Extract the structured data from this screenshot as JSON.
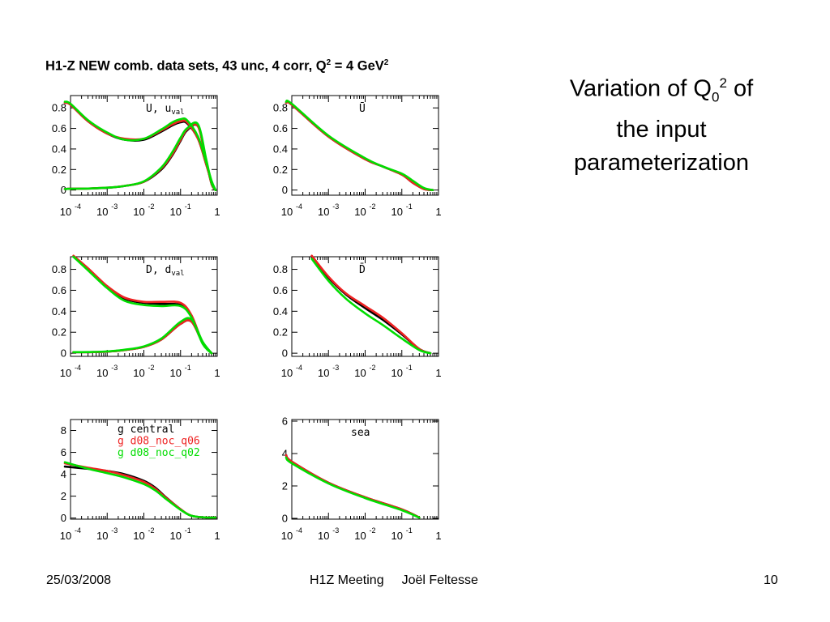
{
  "title": {
    "main": "H1-Z NEW comb. data sets, 43 unc, 4 corr, Q",
    "sup1": "2",
    "mid": " = 4 GeV",
    "sup2": "2"
  },
  "side": {
    "line1a": "Variation of Q",
    "line1_sub": "0",
    "line1_sup": "2",
    "line1b": " of",
    "line2": "the input",
    "line3": "parameterization"
  },
  "footer": {
    "date": "25/03/2008",
    "meeting": "H1Z Meeting",
    "author": "Joël Feltesse",
    "page": "10"
  },
  "colors": {
    "central": "#000000",
    "d08_noc_q06": "#ee2222",
    "d08_noc_q02": "#00dd00"
  },
  "chart_data": [
    {
      "type": "line",
      "label": "U, u",
      "label_sub": "val",
      "xscale": "log",
      "xlim": [
        0.0001,
        1
      ],
      "ylim": [
        -0.05,
        0.92
      ],
      "yticks": [
        "0",
        "0.2",
        "0.4",
        "0.6",
        "0.8"
      ],
      "yticks_val": [
        0,
        0.2,
        0.4,
        0.6,
        0.8
      ],
      "xticks": [
        {
          "base": "10",
          "exp": "-4"
        },
        {
          "base": "10",
          "exp": "-3"
        },
        {
          "base": "10",
          "exp": "-2"
        },
        {
          "base": "10",
          "exp": "-1"
        },
        {
          "base": "1",
          "exp": ""
        }
      ],
      "x": [
        7e-05,
        0.0001,
        0.0003,
        0.001,
        0.003,
        0.01,
        0.03,
        0.06,
        0.1,
        0.15,
        0.3,
        0.5,
        0.7,
        0.9
      ],
      "curves": [
        {
          "series": "central",
          "values": [
            0.85,
            0.83,
            0.67,
            0.55,
            0.49,
            0.49,
            0.57,
            0.63,
            0.66,
            0.65,
            0.5,
            0.25,
            0.08,
            0.0
          ]
        },
        {
          "series": "d08_noc_q06",
          "values": [
            0.85,
            0.83,
            0.67,
            0.55,
            0.5,
            0.5,
            0.58,
            0.64,
            0.67,
            0.66,
            0.5,
            0.25,
            0.08,
            0.0
          ]
        },
        {
          "series": "d08_noc_q02",
          "values": [
            0.86,
            0.84,
            0.68,
            0.56,
            0.49,
            0.5,
            0.59,
            0.66,
            0.69,
            0.68,
            0.52,
            0.27,
            0.09,
            0.0
          ]
        },
        {
          "series": "central",
          "values": [
            0.01,
            0.012,
            0.015,
            0.022,
            0.04,
            0.08,
            0.2,
            0.34,
            0.48,
            0.58,
            0.62,
            0.28,
            0.06,
            0.0
          ]
        },
        {
          "series": "d08_noc_q06",
          "values": [
            0.01,
            0.012,
            0.015,
            0.023,
            0.041,
            0.082,
            0.21,
            0.35,
            0.49,
            0.59,
            0.62,
            0.28,
            0.06,
            0.0
          ]
        },
        {
          "series": "d08_noc_q02",
          "values": [
            0.01,
            0.012,
            0.015,
            0.023,
            0.04,
            0.085,
            0.22,
            0.37,
            0.51,
            0.6,
            0.64,
            0.3,
            0.07,
            0.0
          ]
        }
      ]
    },
    {
      "type": "line",
      "label": "Ū",
      "label_sub": "",
      "xscale": "log",
      "xlim": [
        0.0001,
        1
      ],
      "ylim": [
        -0.05,
        0.92
      ],
      "yticks": [
        "0",
        "0.2",
        "0.4",
        "0.6",
        "0.8"
      ],
      "yticks_val": [
        0,
        0.2,
        0.4,
        0.6,
        0.8
      ],
      "xticks": [
        {
          "base": "10",
          "exp": "-4"
        },
        {
          "base": "10",
          "exp": "-3"
        },
        {
          "base": "10",
          "exp": "-2"
        },
        {
          "base": "10",
          "exp": "-1"
        },
        {
          "base": "1",
          "exp": ""
        }
      ],
      "x": [
        7e-05,
        0.0001,
        0.001,
        0.01,
        0.03,
        0.1,
        0.2,
        0.4,
        0.7
      ],
      "curves": [
        {
          "series": "central",
          "values": [
            0.85,
            0.83,
            0.52,
            0.3,
            0.23,
            0.15,
            0.07,
            0.01,
            0.0
          ]
        },
        {
          "series": "d08_noc_q06",
          "values": [
            0.85,
            0.83,
            0.52,
            0.3,
            0.23,
            0.15,
            0.07,
            0.01,
            0.0
          ]
        },
        {
          "series": "d08_noc_q02",
          "values": [
            0.86,
            0.84,
            0.53,
            0.31,
            0.23,
            0.16,
            0.09,
            0.02,
            0.0
          ]
        }
      ]
    },
    {
      "type": "line",
      "label": "D, d",
      "label_sub": "val",
      "xscale": "log",
      "xlim": [
        0.0001,
        1
      ],
      "ylim": [
        -0.03,
        0.92
      ],
      "yticks": [
        "0",
        "0.2",
        "0.4",
        "0.6",
        "0.8"
      ],
      "yticks_val": [
        0,
        0.2,
        0.4,
        0.6,
        0.8
      ],
      "xticks": [
        {
          "base": "10",
          "exp": "-4"
        },
        {
          "base": "10",
          "exp": "-3"
        },
        {
          "base": "10",
          "exp": "-2"
        },
        {
          "base": "10",
          "exp": "-1"
        },
        {
          "base": "1",
          "exp": ""
        }
      ],
      "x": [
        0.00012,
        0.0003,
        0.001,
        0.003,
        0.01,
        0.03,
        0.1,
        0.2,
        0.4,
        0.7
      ],
      "curves": [
        {
          "series": "central",
          "values": [
            0.92,
            0.8,
            0.63,
            0.52,
            0.48,
            0.47,
            0.46,
            0.35,
            0.1,
            0.0
          ]
        },
        {
          "series": "d08_noc_q06",
          "values": [
            0.93,
            0.81,
            0.64,
            0.53,
            0.49,
            0.49,
            0.48,
            0.36,
            0.1,
            0.0
          ]
        },
        {
          "series": "d08_noc_q02",
          "values": [
            0.92,
            0.79,
            0.62,
            0.5,
            0.46,
            0.45,
            0.45,
            0.34,
            0.09,
            0.0
          ]
        },
        {
          "series": "central",
          "values": [
            0.01,
            0.01,
            0.015,
            0.03,
            0.06,
            0.13,
            0.28,
            0.3,
            0.1,
            0.0
          ]
        },
        {
          "series": "d08_noc_q06",
          "values": [
            0.01,
            0.01,
            0.015,
            0.03,
            0.06,
            0.13,
            0.28,
            0.3,
            0.1,
            0.0
          ]
        },
        {
          "series": "d08_noc_q02",
          "values": [
            0.01,
            0.011,
            0.017,
            0.033,
            0.065,
            0.14,
            0.3,
            0.32,
            0.11,
            0.0
          ]
        }
      ]
    },
    {
      "type": "line",
      "label": "D̄",
      "label_sub": "",
      "xscale": "log",
      "xlim": [
        0.0001,
        1
      ],
      "ylim": [
        -0.03,
        0.92
      ],
      "yticks": [
        "0",
        "0.2",
        "0.4",
        "0.6",
        "0.8"
      ],
      "yticks_val": [
        0,
        0.2,
        0.4,
        0.6,
        0.8
      ],
      "xticks": [
        {
          "base": "10",
          "exp": "-4"
        },
        {
          "base": "10",
          "exp": "-3"
        },
        {
          "base": "10",
          "exp": "-2"
        },
        {
          "base": "10",
          "exp": "-1"
        },
        {
          "base": "1",
          "exp": ""
        }
      ],
      "x": [
        0.00035,
        0.001,
        0.003,
        0.01,
        0.03,
        0.1,
        0.3,
        0.6
      ],
      "curves": [
        {
          "series": "central",
          "values": [
            0.92,
            0.72,
            0.56,
            0.43,
            0.32,
            0.18,
            0.04,
            0.0
          ]
        },
        {
          "series": "d08_noc_q06",
          "values": [
            0.93,
            0.73,
            0.57,
            0.45,
            0.34,
            0.19,
            0.04,
            0.0
          ]
        },
        {
          "series": "d08_noc_q02",
          "values": [
            0.9,
            0.69,
            0.52,
            0.38,
            0.27,
            0.14,
            0.03,
            0.0
          ]
        }
      ]
    },
    {
      "type": "line",
      "label": "",
      "label_sub": "",
      "xscale": "log",
      "xlim": [
        0.0001,
        1
      ],
      "ylim": [
        -0.1,
        9
      ],
      "yticks": [
        "0",
        "2",
        "4",
        "6",
        "8"
      ],
      "yticks_val": [
        0,
        2,
        4,
        6,
        8
      ],
      "xticks": [
        {
          "base": "10",
          "exp": "-4"
        },
        {
          "base": "10",
          "exp": "-3"
        },
        {
          "base": "10",
          "exp": "-2"
        },
        {
          "base": "10",
          "exp": "-1"
        },
        {
          "base": "1",
          "exp": ""
        }
      ],
      "legend": [
        {
          "series": "central",
          "text": "g  central"
        },
        {
          "series": "d08_noc_q06",
          "text": "g  d08_noc_q06"
        },
        {
          "series": "d08_noc_q02",
          "text": "g  d08_noc_q02"
        }
      ],
      "x": [
        7e-05,
        0.0003,
        0.001,
        0.003,
        0.01,
        0.02,
        0.04,
        0.1,
        0.2,
        0.5,
        0.9
      ],
      "curves": [
        {
          "series": "central",
          "values": [
            4.7,
            4.5,
            4.3,
            4.0,
            3.4,
            2.8,
            1.9,
            0.8,
            0.2,
            0.05,
            0.05
          ]
        },
        {
          "series": "d08_noc_q06",
          "values": [
            5.0,
            4.6,
            4.3,
            3.9,
            3.3,
            2.7,
            1.85,
            0.8,
            0.2,
            0.05,
            0.05
          ]
        },
        {
          "series": "d08_noc_q02",
          "values": [
            5.1,
            4.5,
            4.1,
            3.7,
            3.1,
            2.55,
            1.75,
            0.75,
            0.2,
            0.05,
            0.05
          ]
        }
      ]
    },
    {
      "type": "line",
      "label": "sea",
      "label_sub": "",
      "xscale": "log",
      "xlim": [
        0.0001,
        1
      ],
      "ylim": [
        -0.05,
        6.1
      ],
      "yticks": [
        "0",
        "2",
        "4",
        "6"
      ],
      "yticks_val": [
        0,
        2,
        4,
        6
      ],
      "xticks": [
        {
          "base": "10",
          "exp": "-4"
        },
        {
          "base": "10",
          "exp": "-3"
        },
        {
          "base": "10",
          "exp": "-2"
        },
        {
          "base": "10",
          "exp": "-1"
        },
        {
          "base": "1",
          "exp": ""
        }
      ],
      "x": [
        7e-05,
        0.0001,
        0.001,
        0.01,
        0.1,
        0.3
      ],
      "curves": [
        {
          "series": "central",
          "values": [
            3.9,
            3.5,
            2.2,
            1.3,
            0.55,
            0.05
          ]
        },
        {
          "series": "d08_noc_q06",
          "values": [
            3.9,
            3.5,
            2.2,
            1.3,
            0.55,
            0.05
          ]
        },
        {
          "series": "d08_noc_q02",
          "values": [
            3.75,
            3.4,
            2.15,
            1.25,
            0.5,
            0.04
          ]
        }
      ]
    }
  ]
}
